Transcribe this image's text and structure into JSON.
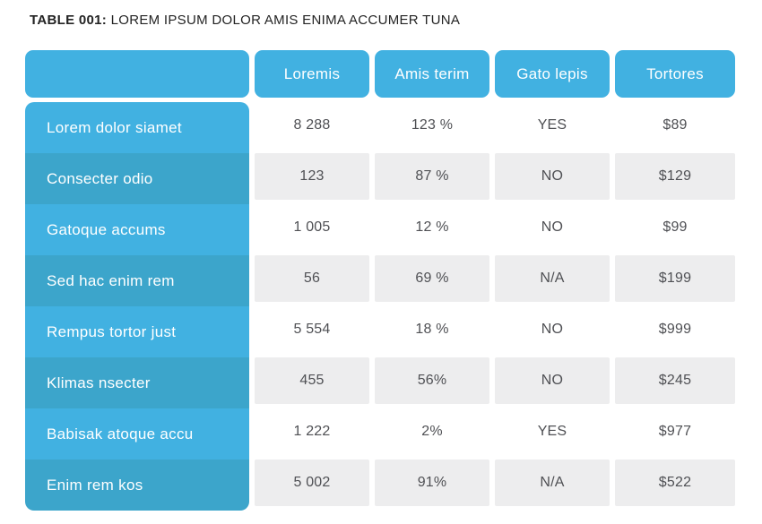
{
  "title": {
    "label": "TABLE 001:",
    "text": "LOREM IPSUM DOLOR AMIS ENIMA ACCUMER TUNA"
  },
  "chart_data": {
    "type": "table",
    "corner_label": "",
    "columns": [
      "Loremis",
      "Amis terim",
      "Gato lepis",
      "Tortores"
    ],
    "rows": [
      {
        "label": "Lorem dolor siamet",
        "values": [
          "8 288",
          "123 %",
          "YES",
          "$89"
        ]
      },
      {
        "label": "Consecter odio",
        "values": [
          "123",
          "87 %",
          "NO",
          "$129"
        ]
      },
      {
        "label": "Gatoque accums",
        "values": [
          "1 005",
          "12 %",
          "NO",
          "$99"
        ]
      },
      {
        "label": "Sed hac enim rem",
        "values": [
          "56",
          "69 %",
          "N/A",
          "$199"
        ]
      },
      {
        "label": "Rempus tortor just",
        "values": [
          "5 554",
          "18 %",
          "NO",
          "$999"
        ]
      },
      {
        "label": "Klimas nsecter",
        "values": [
          "455",
          "56%",
          "NO",
          "$245"
        ]
      },
      {
        "label": "Babisak atoque accu",
        "values": [
          "1 222",
          "2%",
          "YES",
          "$977"
        ]
      },
      {
        "label": "Enim rem kos",
        "values": [
          "5 002",
          "91%",
          "N/A",
          "$522"
        ]
      }
    ]
  },
  "colors": {
    "header_blue": "#41b1e1",
    "alt_blue": "#3ca5cb",
    "gray_cell": "#ededee",
    "text_dark": "#4f5054",
    "title_dark": "#232323"
  }
}
